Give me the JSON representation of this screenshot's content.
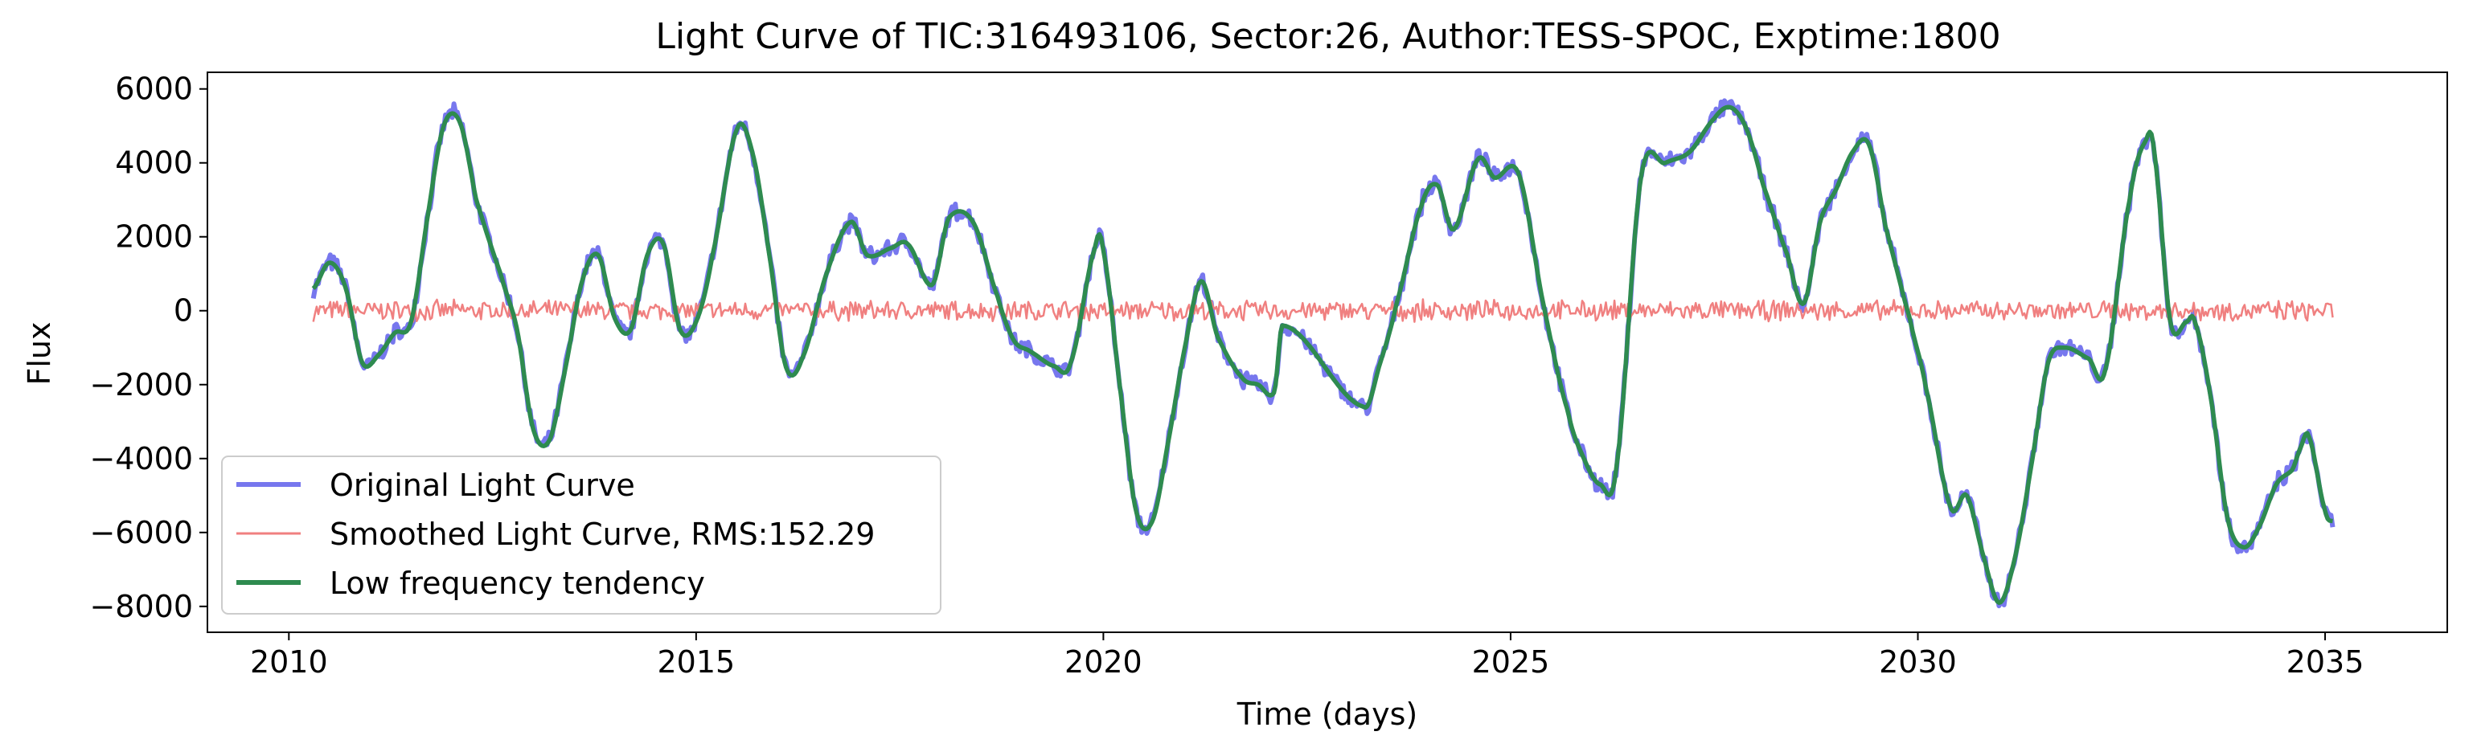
{
  "chart_data": {
    "type": "line",
    "title": "Light Curve of TIC:316493106, Sector:26, Author:TESS-SPOC, Exptime:1800",
    "xlabel": "Time (days)",
    "ylabel": "Flux",
    "xlim": [
      2009.0,
      2036.5
    ],
    "ylim": [
      -8700,
      6450
    ],
    "xticks": [
      2010,
      2015,
      2020,
      2025,
      2030,
      2035
    ],
    "yticks": [
      -8000,
      -6000,
      -4000,
      -2000,
      0,
      2000,
      4000,
      6000
    ],
    "grid": false,
    "legend_position": "lower-left",
    "gap": [
      22.1,
      23.3
    ],
    "series": [
      {
        "name": "Original Light Curve",
        "color": "#7777ee",
        "x_range": [
          2010.3,
          2035.1
        ],
        "points": [
          [
            2010.3,
            600
          ],
          [
            2010.5,
            1300
          ],
          [
            2010.7,
            600
          ],
          [
            2010.9,
            -1400
          ],
          [
            2011.1,
            -1200
          ],
          [
            2011.3,
            -600
          ],
          [
            2011.5,
            -300
          ],
          [
            2011.7,
            2500
          ],
          [
            2011.9,
            5000
          ],
          [
            2012.1,
            5100
          ],
          [
            2012.3,
            3000
          ],
          [
            2012.6,
            1000
          ],
          [
            2012.8,
            -500
          ],
          [
            2013.0,
            -3200
          ],
          [
            2013.2,
            -3500
          ],
          [
            2013.4,
            -1500
          ],
          [
            2013.6,
            800
          ],
          [
            2013.8,
            1500
          ],
          [
            2014.0,
            -200
          ],
          [
            2014.2,
            -500
          ],
          [
            2014.4,
            1500
          ],
          [
            2014.6,
            1800
          ],
          [
            2014.8,
            -500
          ],
          [
            2015.0,
            -300
          ],
          [
            2015.2,
            1500
          ],
          [
            2015.5,
            4900
          ],
          [
            2015.7,
            4200
          ],
          [
            2015.9,
            1500
          ],
          [
            2016.1,
            -1500
          ],
          [
            2016.3,
            -1300
          ],
          [
            2016.6,
            1000
          ],
          [
            2016.9,
            2400
          ],
          [
            2017.1,
            1500
          ],
          [
            2017.4,
            1700
          ],
          [
            2017.6,
            1800
          ],
          [
            2017.9,
            700
          ],
          [
            2018.1,
            2500
          ],
          [
            2018.4,
            2400
          ],
          [
            2018.7,
            400
          ],
          [
            2018.9,
            -800
          ],
          [
            2019.1,
            -1100
          ],
          [
            2019.4,
            -1500
          ],
          [
            2019.6,
            -1400
          ],
          [
            2019.9,
            1700
          ],
          [
            2020.0,
            1600
          ],
          [
            2020.2,
            -2000
          ],
          [
            2020.4,
            -5400
          ],
          [
            2020.6,
            -5700
          ],
          [
            2020.8,
            -3500
          ],
          [
            2021.0,
            -1000
          ],
          [
            2021.2,
            800
          ],
          [
            2021.4,
            -700
          ],
          [
            2021.7,
            -1800
          ],
          [
            2021.9,
            -2000
          ],
          [
            2022.1,
            -2200
          ],
          [
            2022.2,
            -400
          ],
          [
            2023.2,
            -2600
          ],
          [
            2023.4,
            -1400
          ],
          [
            2023.6,
            200
          ],
          [
            2023.9,
            2800
          ],
          [
            2024.1,
            3400
          ],
          [
            2024.3,
            2200
          ],
          [
            2024.6,
            4100
          ],
          [
            2024.8,
            3600
          ],
          [
            2025.1,
            3700
          ],
          [
            2025.4,
            200
          ],
          [
            2025.7,
            -2700
          ],
          [
            2025.9,
            -4000
          ],
          [
            2026.1,
            -4700
          ],
          [
            2026.3,
            -4200
          ],
          [
            2026.6,
            3600
          ],
          [
            2026.9,
            4000
          ],
          [
            2027.2,
            4300
          ],
          [
            2027.5,
            5200
          ],
          [
            2027.7,
            5500
          ],
          [
            2027.9,
            4900
          ],
          [
            2028.1,
            3400
          ],
          [
            2028.4,
            1500
          ],
          [
            2028.6,
            200
          ],
          [
            2028.8,
            2400
          ],
          [
            2029.0,
            3300
          ],
          [
            2029.2,
            4300
          ],
          [
            2029.4,
            4500
          ],
          [
            2029.6,
            2300
          ],
          [
            2029.9,
            -200
          ],
          [
            2030.1,
            -2100
          ],
          [
            2030.4,
            -5300
          ],
          [
            2030.6,
            -5000
          ],
          [
            2030.8,
            -6600
          ],
          [
            2031.0,
            -7900
          ],
          [
            2031.2,
            -6600
          ],
          [
            2031.4,
            -4100
          ],
          [
            2031.6,
            -1400
          ],
          [
            2031.8,
            -1000
          ],
          [
            2032.1,
            -1300
          ],
          [
            2032.3,
            -1600
          ],
          [
            2032.6,
            3000
          ],
          [
            2032.8,
            4600
          ],
          [
            2032.9,
            4300
          ],
          [
            2033.1,
            -300
          ],
          [
            2033.3,
            -300
          ],
          [
            2033.4,
            -300
          ],
          [
            2033.6,
            -2400
          ],
          [
            2033.8,
            -5600
          ],
          [
            2034.0,
            -6400
          ],
          [
            2034.2,
            -5800
          ],
          [
            2034.4,
            -4700
          ],
          [
            2034.6,
            -4300
          ],
          [
            2034.7,
            -3700
          ],
          [
            2034.8,
            -3400
          ],
          [
            2035.0,
            -5400
          ],
          [
            2035.1,
            -5700
          ]
        ]
      },
      {
        "name": "Smoothed Light Curve, RMS:152.29",
        "color": "#f08080",
        "x_range": [
          2010.3,
          2035.1
        ],
        "rms": 152.29
      },
      {
        "name": "Low frequency tendency",
        "color": "#2e8b4f",
        "x_range": [
          2010.3,
          2035.1
        ]
      }
    ]
  }
}
